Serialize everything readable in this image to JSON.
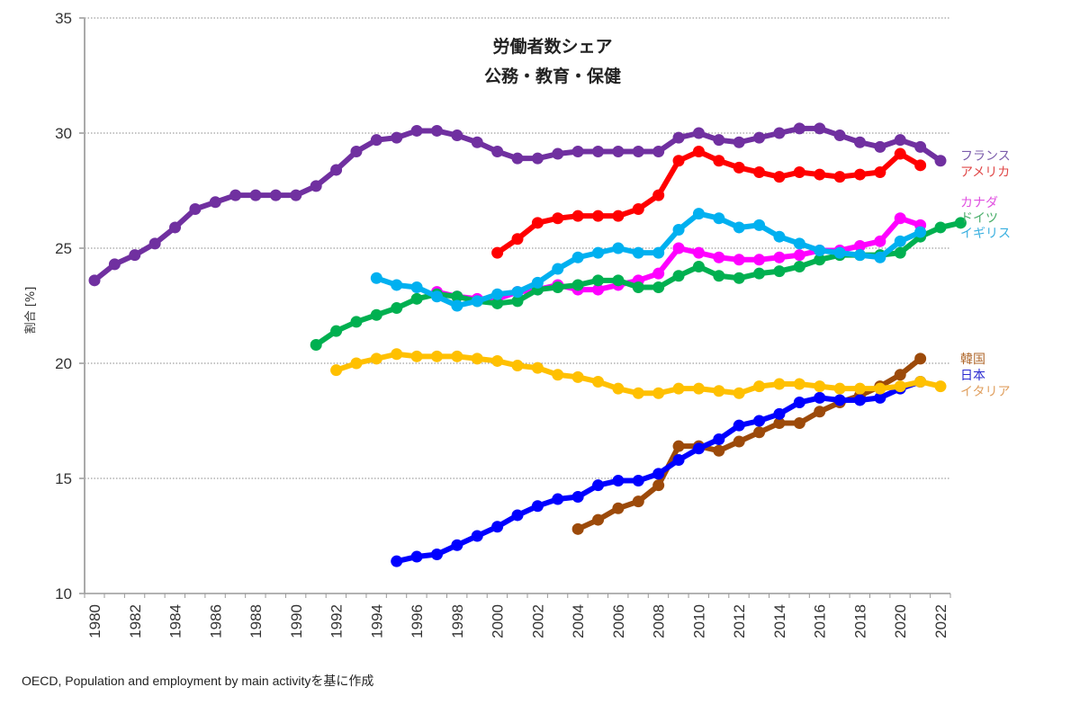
{
  "chart_data": {
    "type": "line",
    "title": "労働者数シェア",
    "subtitle": "公務・教育・保健",
    "xlabel": "",
    "ylabel": "割合 [%]",
    "ylim": [
      10,
      35
    ],
    "yticks": [
      10,
      15,
      20,
      25,
      30,
      35
    ],
    "xlim": [
      1980,
      2022
    ],
    "xticks": [
      1980,
      1982,
      1984,
      1986,
      1988,
      1990,
      1992,
      1994,
      1996,
      1998,
      2000,
      2002,
      2004,
      2006,
      2008,
      2010,
      2012,
      2014,
      2016,
      2018,
      2020,
      2022
    ],
    "grid": "horizontal-dotted",
    "legend_placement": "right (inline labels)",
    "series": [
      {
        "name": "フランス",
        "color": "#7030a0",
        "label_color": "#7b5cab",
        "start": 1980,
        "values": [
          23.6,
          24.3,
          24.7,
          25.2,
          25.9,
          26.7,
          27.0,
          27.3,
          27.3,
          27.3,
          27.3,
          27.7,
          28.4,
          29.2,
          29.7,
          29.8,
          30.1,
          30.1,
          29.9,
          29.6,
          29.2,
          28.9,
          28.9,
          29.1,
          29.2,
          29.2,
          29.2,
          29.2,
          29.2,
          29.8,
          30.0,
          29.7,
          29.6,
          29.8,
          30.0,
          30.2,
          30.2,
          29.9,
          29.6,
          29.4,
          29.7,
          29.4,
          28.8
        ]
      },
      {
        "name": "アメリカ",
        "color": "#ff0000",
        "label_color": "#e04848",
        "start": 2000,
        "values": [
          24.8,
          25.4,
          26.1,
          26.3,
          26.4,
          26.4,
          26.4,
          26.7,
          27.3,
          28.8,
          29.2,
          28.8,
          28.5,
          28.3,
          28.1,
          28.3,
          28.2,
          28.1,
          28.2,
          28.3,
          29.1,
          28.6
        ]
      },
      {
        "name": "カナダ",
        "color": "#ff00ff",
        "label_color": "#e050e0",
        "start": 1997,
        "values": [
          23.1,
          22.9,
          22.8,
          22.8,
          23.1,
          23.2,
          23.4,
          23.2,
          23.2,
          23.4,
          23.6,
          23.9,
          25.0,
          24.8,
          24.6,
          24.5,
          24.5,
          24.6,
          24.7,
          24.9,
          24.9,
          25.1,
          25.3,
          26.3,
          26.0
        ]
      },
      {
        "name": "ドイツ",
        "color": "#00b050",
        "label_color": "#4caf6c",
        "start": 1991,
        "values": [
          20.8,
          21.4,
          21.8,
          22.1,
          22.4,
          22.8,
          23.0,
          22.9,
          22.7,
          22.6,
          22.7,
          23.2,
          23.3,
          23.4,
          23.6,
          23.6,
          23.3,
          23.3,
          23.8,
          24.2,
          23.8,
          23.7,
          23.9,
          24.0,
          24.2,
          24.5,
          24.7,
          24.7,
          24.7,
          24.8,
          25.5,
          25.9,
          26.1
        ]
      },
      {
        "name": "イギリス",
        "color": "#00b0f0",
        "label_color": "#3ab0e0",
        "start": 1994,
        "values": [
          23.7,
          23.4,
          23.3,
          22.9,
          22.5,
          22.7,
          23.0,
          23.1,
          23.5,
          24.1,
          24.6,
          24.8,
          25.0,
          24.8,
          24.8,
          25.8,
          26.5,
          26.3,
          25.9,
          26.0,
          25.5,
          25.2,
          24.9,
          24.8,
          24.7,
          24.6,
          25.3,
          25.7
        ]
      },
      {
        "name": "韓国",
        "color": "#9c4a0a",
        "label_color": "#b0692e",
        "start": 2004,
        "values": [
          12.8,
          13.2,
          13.7,
          14.0,
          14.7,
          16.4,
          16.4,
          16.2,
          16.6,
          17.0,
          17.4,
          17.4,
          17.9,
          18.3,
          18.6,
          19.0,
          19.5,
          20.2
        ]
      },
      {
        "name": "日本",
        "color": "#0000ff",
        "label_color": "#2a2ad0",
        "start": 1995,
        "values": [
          11.4,
          11.6,
          11.7,
          12.1,
          12.5,
          12.9,
          13.4,
          13.8,
          14.1,
          14.2,
          14.7,
          14.9,
          14.9,
          15.2,
          15.8,
          16.3,
          16.7,
          17.3,
          17.5,
          17.8,
          18.3,
          18.5,
          18.4,
          18.4,
          18.5,
          18.9,
          19.2
        ]
      },
      {
        "name": "イタリア",
        "color": "#ffc000",
        "label_color": "#e0a060",
        "start": 1992,
        "values": [
          19.7,
          20.0,
          20.2,
          20.4,
          20.3,
          20.3,
          20.3,
          20.2,
          20.1,
          19.9,
          19.8,
          19.5,
          19.4,
          19.2,
          18.9,
          18.7,
          18.7,
          18.9,
          18.9,
          18.8,
          18.7,
          19.0,
          19.1,
          19.1,
          19.0,
          18.9,
          18.9,
          18.9,
          19.0,
          19.2,
          19.0
        ]
      }
    ]
  },
  "source": "OECD, Population and employment by main activityを基に作成"
}
